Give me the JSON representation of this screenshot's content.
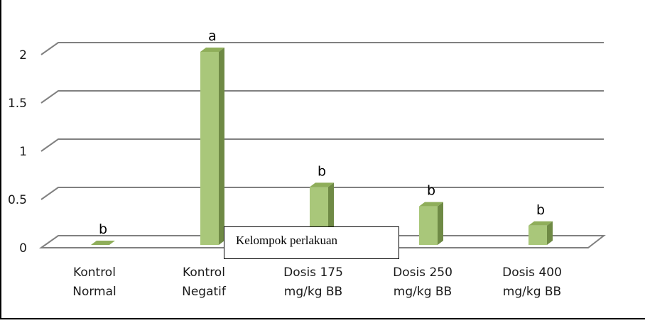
{
  "chart_data": {
    "type": "bar",
    "title": "",
    "xlabel": "",
    "ylabel": "",
    "ylim": [
      0,
      2
    ],
    "yticks": [
      "0",
      "0.5",
      "1",
      "1.5",
      "2"
    ],
    "categories": [
      [
        "Kontrol",
        "Normal"
      ],
      [
        "Kontrol",
        "Negatif"
      ],
      [
        "Dosis 175",
        "mg/kg BB"
      ],
      [
        "Dosis 250",
        "mg/kg BB"
      ],
      [
        "Dosis 400",
        "mg/kg BB"
      ]
    ],
    "values": [
      0,
      2,
      0.6,
      0.4,
      0.2
    ],
    "significance_letters": [
      "b",
      "a",
      "b",
      "b",
      "b"
    ],
    "annotation": "Kelompok perlakuan",
    "grid": true,
    "three_d": true,
    "colors": {
      "bar_front": "#a9c77a",
      "bar_side": "#6f8a45",
      "bar_top": "#8fae5a",
      "grid": "#808080",
      "floor": "#808080"
    }
  }
}
